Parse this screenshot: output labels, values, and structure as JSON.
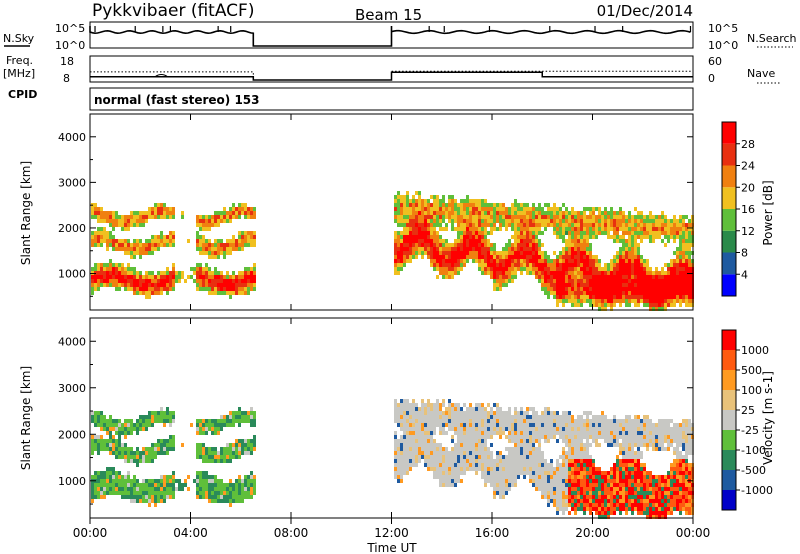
{
  "header": {
    "title": "Pykkvibaer (fitACF)",
    "beam": "Beam 15",
    "date": "01/Dec/2014"
  },
  "top_panel": {
    "left_label": "N.Sky",
    "right_label": "N.Search",
    "left_ticks": [
      "10^5",
      "10^0"
    ],
    "right_ticks": [
      "10^5",
      "10^0"
    ]
  },
  "freq_panel": {
    "left_label_1": "Freq.",
    "left_label_2": "[MHz]",
    "right_label": "Nave",
    "left_ticks": [
      "18",
      "8"
    ],
    "right_ticks": [
      "60",
      "0"
    ]
  },
  "cpid": {
    "label": "CPID",
    "mode": "normal (fast stereo) 153"
  },
  "x_axis": {
    "label": "Time UT",
    "ticks": [
      "00:00",
      "04:00",
      "08:00",
      "12:00",
      "16:00",
      "20:00",
      "00:00"
    ]
  },
  "colors": {
    "power": [
      "#0000ff",
      "#1e5aa0",
      "#2a8a4a",
      "#5fbf3a",
      "#f0c020",
      "#f08010",
      "#e83010",
      "#ff0000"
    ],
    "velocity": [
      "#ff0000",
      "#ff5a10",
      "#ff9a20",
      "#e8c27a",
      "#c8c8c4",
      "#5fbf3a",
      "#2a8a5a",
      "#1e5aa0",
      "#0000c8"
    ]
  },
  "chart_data": [
    {
      "type": "line",
      "title": "N.Sky / N.Search",
      "x": [
        "00:00",
        "06:30",
        "06:30",
        "12:00",
        "12:00",
        "24:00"
      ],
      "series": [
        {
          "name": "N.Sky",
          "values": [
            100000,
            100000,
            1,
            1,
            100000,
            100000
          ]
        },
        {
          "name": "N.Search",
          "values": [
            100000,
            100000,
            1,
            1,
            100000,
            100000
          ]
        }
      ]
    },
    {
      "type": "line",
      "title": "Freq. / Nave",
      "x": [
        "00:00",
        "06:30",
        "06:30",
        "12:00",
        "12:00",
        "18:00",
        "18:00",
        "24:00"
      ],
      "series": [
        {
          "name": "Freq.",
          "values": [
            10,
            10,
            8,
            8,
            11,
            11,
            10,
            10
          ]
        },
        {
          "name": "Nave",
          "values": [
            22,
            22,
            0,
            0,
            24,
            24,
            24,
            24
          ]
        }
      ]
    },
    {
      "type": "heatmap",
      "xlabel": "Time UT",
      "ylabel": "Slant Range [km]",
      "xlim": [
        0,
        24
      ],
      "ylim": [
        200,
        4500
      ],
      "y_ticks": [
        1000,
        2000,
        3000,
        4000
      ],
      "colorbar": {
        "label": "Power [dB]",
        "ticks": [
          "28",
          "24",
          "20",
          "16",
          "12",
          "8",
          "4"
        ],
        "range": [
          0,
          32
        ]
      }
    },
    {
      "type": "heatmap",
      "xlabel": "Time UT",
      "ylabel": "Slant Range [km]",
      "xlim": [
        0,
        24
      ],
      "ylim": [
        200,
        4500
      ],
      "y_ticks": [
        1000,
        2000,
        3000,
        4000
      ],
      "colorbar": {
        "label": "Velocity [m s-1]",
        "ticks": [
          "1000",
          "500",
          "100",
          "25",
          "-25",
          "-100",
          "-500",
          "-1000"
        ],
        "range": [
          -1000,
          1000
        ]
      }
    }
  ]
}
